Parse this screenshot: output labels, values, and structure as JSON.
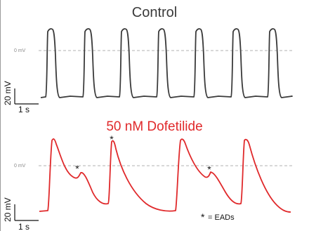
{
  "traces": {
    "control": {
      "title": "Control",
      "color": "#3a3a3a"
    },
    "dofetilide": {
      "title": "50 nM Dofetilide",
      "color": "#e0292b"
    }
  },
  "zero_line_label": "0 mV",
  "zero_line_color": "#b0b0b0",
  "scale_bar": {
    "voltage": "20 mV",
    "time": "1 s"
  },
  "ead_marker": "*",
  "legend": {
    "marker": "*",
    "text": "= EADs"
  }
}
